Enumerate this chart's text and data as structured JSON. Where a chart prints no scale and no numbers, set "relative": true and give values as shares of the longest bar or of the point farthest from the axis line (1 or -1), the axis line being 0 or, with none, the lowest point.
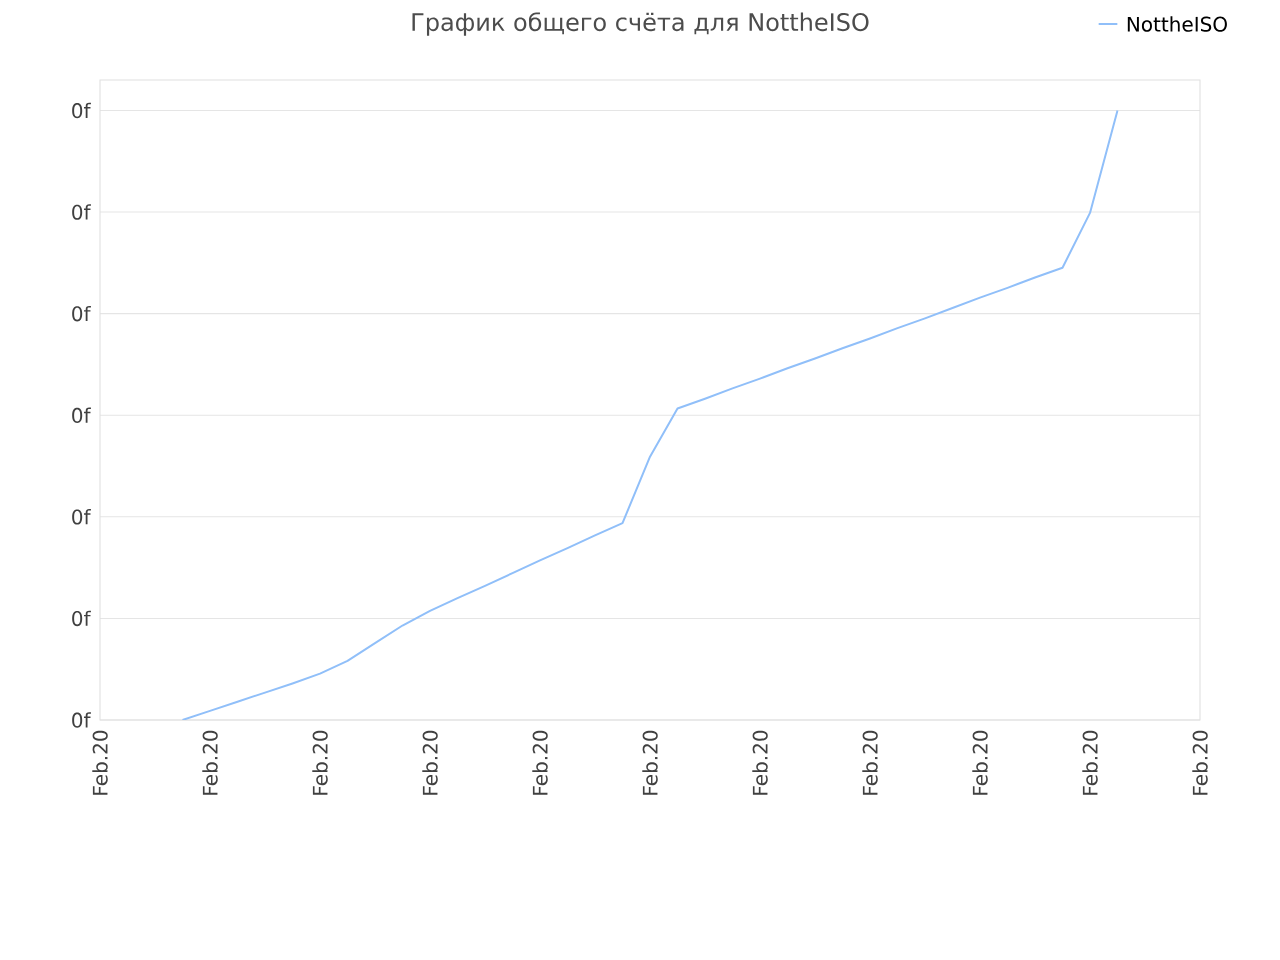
{
  "chart_data": {
    "type": "line",
    "title": "График общего счёта для NottheISO",
    "relative": true,
    "categories": [
      "Feb.20",
      null,
      null,
      null,
      "Feb.20",
      null,
      null,
      null,
      "Feb.20",
      null,
      null,
      null,
      "Feb.20",
      null,
      null,
      null,
      "Feb.20",
      null,
      null,
      null,
      "Feb.20",
      null,
      null,
      null,
      "Feb.20",
      null,
      null,
      null,
      "Feb.20",
      null,
      null,
      null,
      "Feb.20",
      null,
      null,
      null,
      "Feb.20",
      null,
      null,
      null,
      "Feb.20"
    ],
    "series": [
      {
        "name": "NottheISO",
        "color": "#90bff9",
        "values": [
          null,
          null,
          null,
          0,
          0.015,
          0.03,
          0.045,
          0.06,
          0.076,
          0.097,
          0.126,
          0.155,
          0.179,
          0.2,
          0.22,
          0.241,
          0.262,
          0.282,
          0.303,
          0.323,
          0.432,
          0.511,
          0.527,
          0.544,
          0.56,
          0.577,
          0.593,
          0.61,
          0.626,
          0.643,
          0.659,
          0.676,
          0.693,
          0.709,
          0.726,
          0.742,
          0.832,
          1,
          null,
          null,
          null
        ]
      }
    ],
    "annotations": [
      "0f",
      "0f",
      "0f",
      "0f",
      "0f",
      "0f",
      "0f"
    ],
    "grid": "y",
    "legend": "top right",
    "marker": "none",
    "line_style": "solid"
  }
}
